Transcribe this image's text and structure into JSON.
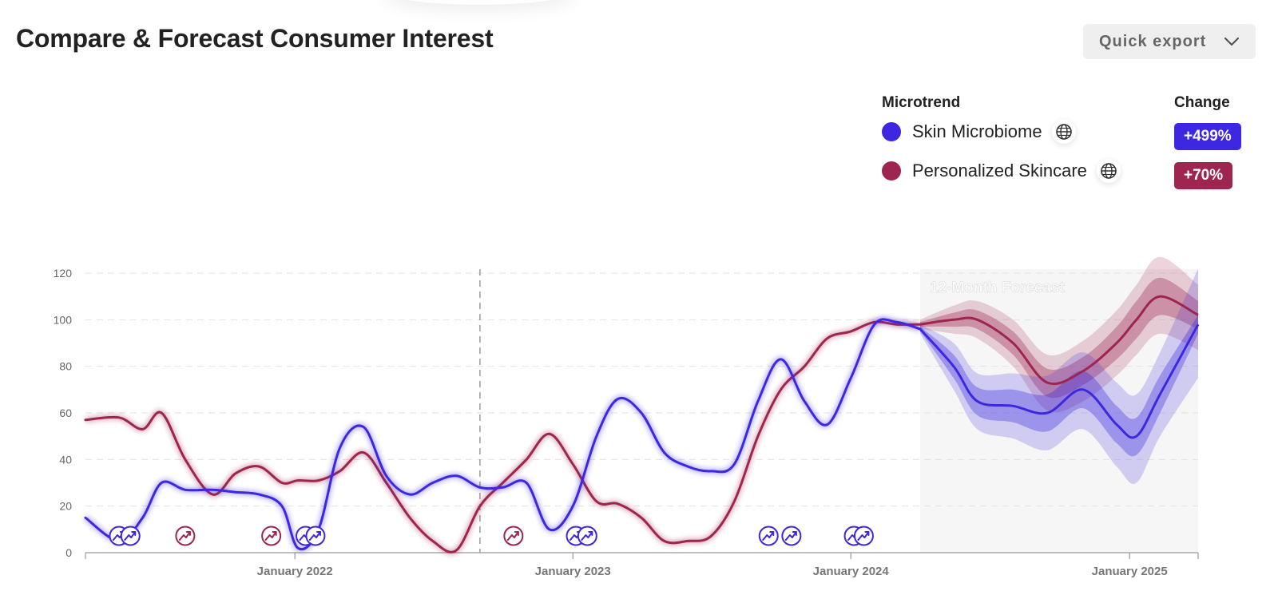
{
  "header": {
    "title": "Compare & Forecast Consumer Interest",
    "export_label": "Quick export"
  },
  "legend": {
    "microtrend_header": "Microtrend",
    "change_header": "Change",
    "items": [
      {
        "label": "Skin Microbiome",
        "change": "+499%",
        "color": "#3d27e0",
        "icon": "globe-icon"
      },
      {
        "label": "Personalized Skincare",
        "change": "+70%",
        "color": "#9e2550",
        "icon": "globe-icon"
      }
    ]
  },
  "chart_data": {
    "type": "line",
    "title": "",
    "xlabel": "",
    "ylabel": "",
    "ylim": [
      0,
      120
    ],
    "y_ticks": [
      0,
      20,
      40,
      60,
      80,
      100,
      120
    ],
    "x_range": [
      "2021-04-01",
      "2025-04-01"
    ],
    "x_ticks": [
      {
        "date": "2022-01-01",
        "label": "January 2022"
      },
      {
        "date": "2023-01-01",
        "label": "January 2023"
      },
      {
        "date": "2024-01-01",
        "label": "January 2024"
      },
      {
        "date": "2025-01-01",
        "label": "January 2025"
      }
    ],
    "grid": true,
    "vertical_reference_date": "2022-09-01",
    "forecast": {
      "label": "12-Month Forecast",
      "start": "2024-04-01",
      "end": "2025-04-01"
    },
    "series": [
      {
        "name": "Skin Microbiome",
        "color": "#3d27e0",
        "x": [
          "2021-04-01",
          "2021-05-15",
          "2021-06-15",
          "2021-07-10",
          "2021-08-10",
          "2021-09-15",
          "2021-10-15",
          "2021-11-15",
          "2021-12-15",
          "2022-01-05",
          "2022-02-01",
          "2022-03-01",
          "2022-04-01",
          "2022-05-01",
          "2022-06-01",
          "2022-07-01",
          "2022-08-01",
          "2022-09-01",
          "2022-10-01",
          "2022-11-01",
          "2022-12-01",
          "2023-01-01",
          "2023-02-01",
          "2023-03-01",
          "2023-04-01",
          "2023-05-01",
          "2023-06-01",
          "2023-07-01",
          "2023-08-01",
          "2023-09-01",
          "2023-10-01",
          "2023-11-01",
          "2023-12-01",
          "2024-01-01",
          "2024-02-01",
          "2024-03-01",
          "2024-04-01"
        ],
        "values": [
          15,
          5,
          15,
          30,
          27,
          27,
          26,
          25,
          20,
          2,
          10,
          45,
          54,
          33,
          25,
          30,
          33,
          28,
          28,
          30,
          10,
          20,
          50,
          66,
          60,
          43,
          37,
          35,
          38,
          65,
          83,
          65,
          55,
          75,
          98,
          99,
          96
        ]
      },
      {
        "name": "Personalized Skincare",
        "color": "#9e2550",
        "x": [
          "2021-04-01",
          "2021-05-15",
          "2021-06-15",
          "2021-07-10",
          "2021-08-10",
          "2021-09-15",
          "2021-10-15",
          "2021-11-15",
          "2021-12-15",
          "2022-01-05",
          "2022-02-01",
          "2022-03-01",
          "2022-04-01",
          "2022-05-01",
          "2022-06-01",
          "2022-07-01",
          "2022-08-01",
          "2022-09-01",
          "2022-10-01",
          "2022-11-01",
          "2022-12-01",
          "2023-01-01",
          "2023-02-01",
          "2023-03-01",
          "2023-04-01",
          "2023-05-01",
          "2023-06-01",
          "2023-07-01",
          "2023-08-01",
          "2023-09-01",
          "2023-10-01",
          "2023-11-01",
          "2023-12-01",
          "2024-01-01",
          "2024-02-01",
          "2024-03-01",
          "2024-04-01"
        ],
        "values": [
          57,
          58,
          53,
          60,
          40,
          25,
          34,
          37,
          30,
          31,
          31,
          35,
          43,
          30,
          15,
          5,
          1,
          20,
          30,
          40,
          51,
          38,
          22,
          21,
          15,
          5,
          5,
          7,
          22,
          50,
          70,
          80,
          92,
          95,
          99,
          98,
          98
        ]
      }
    ],
    "forecast_series": [
      {
        "name": "Skin Microbiome",
        "x": [
          "2024-04-01",
          "2024-05-15",
          "2024-06-15",
          "2024-08-01",
          "2024-09-15",
          "2024-11-01",
          "2024-12-15",
          "2025-01-10",
          "2025-02-10",
          "2025-04-01"
        ],
        "values": [
          96,
          80,
          65,
          63,
          60,
          70,
          55,
          50,
          68,
          98
        ],
        "upper_inner": [
          97,
          85,
          71,
          70,
          68,
          78,
          63,
          58,
          76,
          102
        ],
        "lower_inner": [
          95,
          75,
          59,
          56,
          52,
          62,
          47,
          42,
          60,
          94
        ],
        "upper_outer": [
          98,
          90,
          77,
          77,
          76,
          86,
          73,
          68,
          86,
          122
        ],
        "lower_outer": [
          94,
          70,
          53,
          49,
          44,
          53,
          37,
          30,
          50,
          75
        ]
      },
      {
        "name": "Personalized Skincare",
        "x": [
          "2024-04-01",
          "2024-05-15",
          "2024-06-15",
          "2024-08-01",
          "2024-09-15",
          "2024-11-01",
          "2024-12-15",
          "2025-01-10",
          "2025-02-10",
          "2025-04-01"
        ],
        "values": [
          98,
          100,
          100,
          90,
          73,
          78,
          90,
          100,
          110,
          102
        ],
        "upper_inner": [
          99,
          103,
          104,
          95,
          79,
          84,
          97,
          108,
          118,
          108
        ],
        "lower_inner": [
          97,
          97,
          96,
          85,
          67,
          72,
          83,
          92,
          102,
          96
        ],
        "upper_outer": [
          100,
          106,
          108,
          100,
          85,
          91,
          104,
          115,
          127,
          115
        ],
        "lower_outer": [
          96,
          94,
          92,
          80,
          61,
          65,
          76,
          85,
          94,
          87
        ]
      }
    ],
    "event_markers": [
      {
        "series": "Skin Microbiome",
        "dates": [
          "2021-05-15",
          "2021-05-30",
          "2022-01-15",
          "2022-01-28",
          "2023-01-05",
          "2023-01-20",
          "2023-09-15",
          "2023-10-15",
          "2024-01-05",
          "2024-01-18"
        ]
      },
      {
        "series": "Personalized Skincare",
        "dates": [
          "2021-08-10",
          "2021-12-01",
          "2022-10-15"
        ]
      }
    ]
  }
}
